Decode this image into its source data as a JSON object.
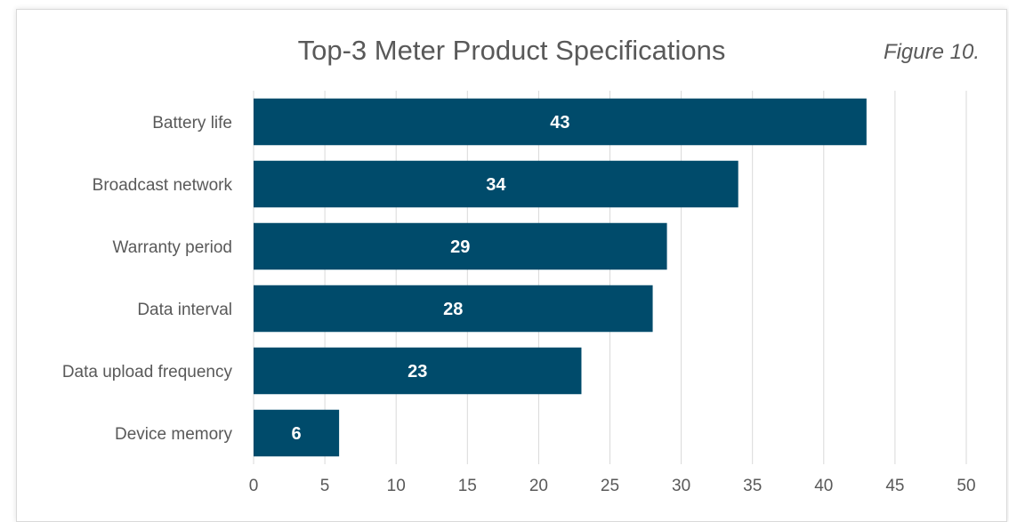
{
  "figure_label": "Figure 10.",
  "chart_data": {
    "type": "bar",
    "orientation": "horizontal",
    "title": "Top-3 Meter Product Specifications",
    "xlabel": "",
    "ylabel": "",
    "categories": [
      "Battery life",
      "Broadcast network",
      "Warranty period",
      "Data interval",
      "Data upload frequency",
      "Device memory"
    ],
    "values": [
      43,
      34,
      29,
      28,
      23,
      6
    ],
    "data_labels": [
      "43",
      "34",
      "29",
      "28",
      "23",
      "6"
    ],
    "xlim": [
      0,
      50
    ],
    "ticks": [
      0,
      5,
      10,
      15,
      20,
      25,
      30,
      35,
      40,
      45,
      50
    ],
    "tick_labels": [
      "0",
      "5",
      "10",
      "15",
      "20",
      "25",
      "30",
      "35",
      "40",
      "45",
      "50"
    ],
    "grid": "vertical",
    "legend": "none",
    "bar_color": "#004B6B",
    "grid_color": "#D9D9D9",
    "text_color": "#595959",
    "label_color": "#FFFFFF"
  }
}
